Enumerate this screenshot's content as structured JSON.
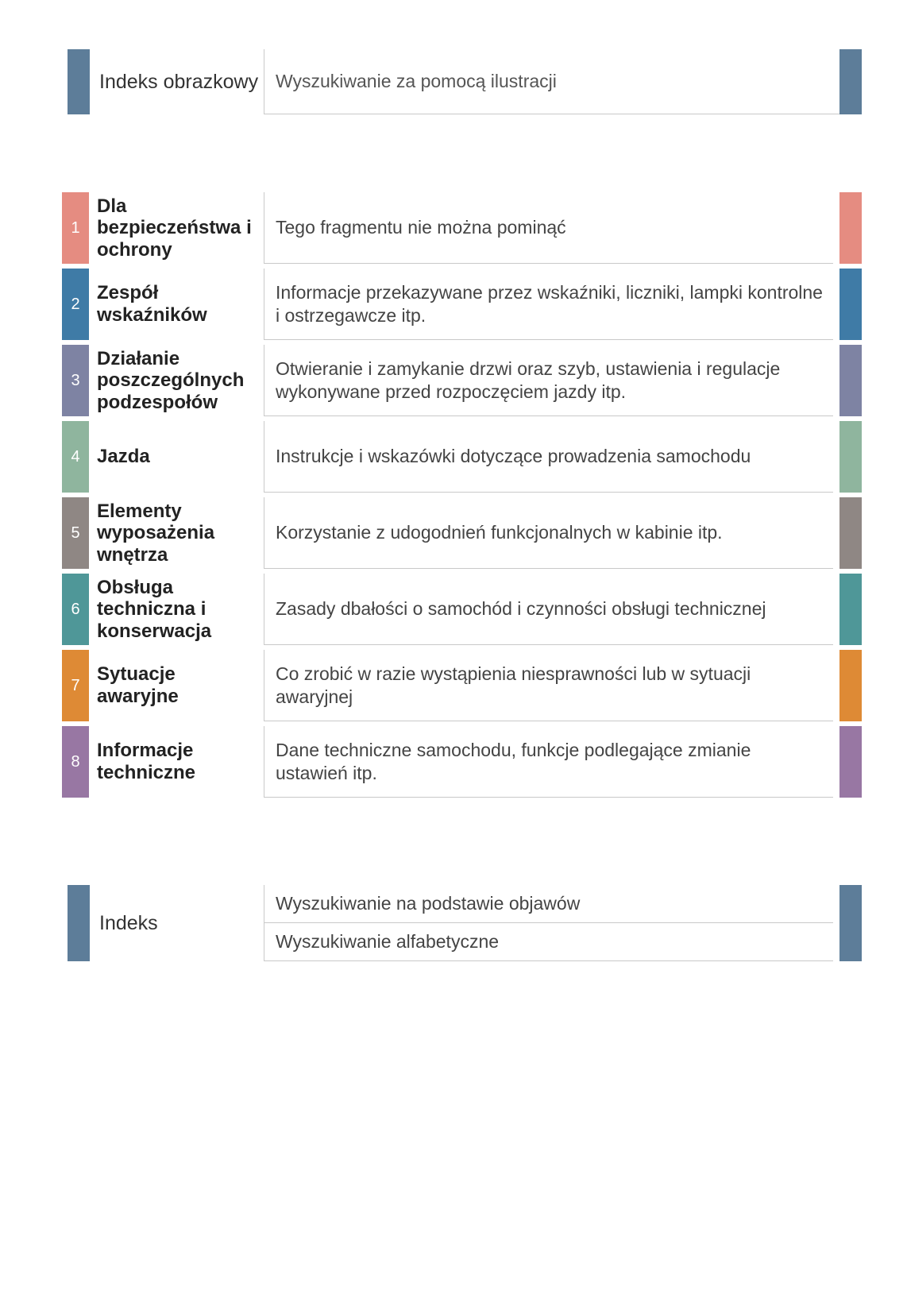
{
  "header": {
    "title": "Indeks obrazkowy",
    "desc": "Wyszukiwanie za pomocą ilustracji",
    "block_color": "#5d7d99"
  },
  "chapters": [
    {
      "num": "1",
      "title": "Dla bezpieczeństwa i ochrony",
      "desc": "Tego fragmentu nie można pominąć",
      "color": "#e58c81"
    },
    {
      "num": "2",
      "title": "Zespół wskaźników",
      "desc": "Informacje przekazywane przez wskaźniki, liczniki, lampki kontrolne i ostrzegawcze itp.",
      "color": "#3f7ba6"
    },
    {
      "num": "3",
      "title": "Działanie poszczególnych podzespołów",
      "desc": "Otwieranie i zamykanie drzwi oraz szyb, ustawienia i regulacje wykonywane przed rozpoczęciem jazdy itp.",
      "color": "#7e83a3"
    },
    {
      "num": "4",
      "title": "Jazda",
      "desc": "Instrukcje i wskazówki dotyczące prowadzenia samochodu",
      "color": "#8fb59e"
    },
    {
      "num": "5",
      "title": "Elementy wyposażenia wnętrza",
      "desc": "Korzystanie z udogodnień funkcjonalnych w kabinie itp.",
      "color": "#8f8784"
    },
    {
      "num": "6",
      "title": "Obsługa techniczna i konserwacja",
      "desc": "Zasady dbałości o samochód i czynności obsługi technicznej",
      "color": "#4f9798"
    },
    {
      "num": "7",
      "title": "Sytuacje awaryjne",
      "desc": "Co zrobić w razie wystąpienia niesprawności lub w sytuacji awaryjnej",
      "color": "#de8a35"
    },
    {
      "num": "8",
      "title": "Informacje techniczne",
      "desc": "Dane techniczne samochodu, funkcje podlegające zmianie ustawień itp.",
      "color": "#9877a3"
    }
  ],
  "index": {
    "title": "Indeks",
    "lines": [
      {
        "text": "Wyszukiwanie na podstawie objawów",
        "color": "#5d7d99"
      },
      {
        "text": "Wyszukiwanie alfabetyczne",
        "color": "#5d7d99"
      }
    ],
    "block_color": "#5d7d99"
  },
  "page_bg": "#ffffff"
}
